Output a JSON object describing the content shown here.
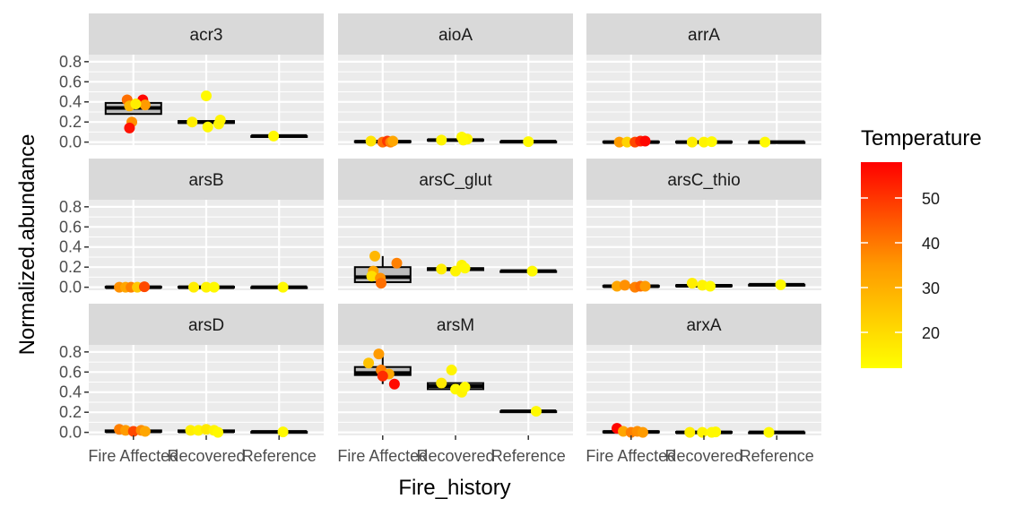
{
  "chart_data": {
    "type": "boxplot-jitter-facets",
    "xlabel": "Fire_history",
    "ylabel": "Normalized.abundance",
    "categories": [
      "Fire Affected",
      "Recovered",
      "Reference"
    ],
    "ylim": [
      -0.03,
      0.87
    ],
    "yticks": [
      0.0,
      0.2,
      0.4,
      0.6,
      0.8
    ],
    "ytick_labels": [
      "0.0",
      "0.2",
      "0.4",
      "0.6",
      "0.8"
    ],
    "grid": true,
    "legend": {
      "title": "Temperature",
      "placement": "right",
      "range": [
        12,
        58
      ],
      "ticks": [
        20,
        30,
        40,
        50
      ],
      "colors": [
        "#FFFF00",
        "#FF0000"
      ]
    },
    "panels": [
      {
        "name": "acr3",
        "boxes": [
          {
            "q1": 0.28,
            "median": 0.34,
            "q3": 0.39,
            "lo": 0.28,
            "hi": 0.39
          },
          {
            "q1": 0.19,
            "median": 0.2,
            "q3": 0.21,
            "lo": 0.19,
            "hi": 0.21
          },
          {
            "q1": 0.06,
            "median": 0.06,
            "q3": 0.06,
            "lo": 0.06,
            "hi": 0.06
          }
        ],
        "points": [
          {
            "g": 0,
            "dx": -0.08,
            "y": 0.42,
            "t": 38
          },
          {
            "g": 0,
            "dx": 0.12,
            "y": 0.42,
            "t": 57
          },
          {
            "g": 0,
            "dx": -0.05,
            "y": 0.36,
            "t": 25
          },
          {
            "g": 0,
            "dx": 0.15,
            "y": 0.37,
            "t": 30
          },
          {
            "g": 0,
            "dx": 0.03,
            "y": 0.38,
            "t": 15
          },
          {
            "g": 0,
            "dx": -0.02,
            "y": 0.2,
            "t": 32
          },
          {
            "g": 0,
            "dx": -0.05,
            "y": 0.14,
            "t": 55
          },
          {
            "g": 1,
            "dx": 0.0,
            "y": 0.46,
            "t": 13
          },
          {
            "g": 1,
            "dx": -0.18,
            "y": 0.2,
            "t": 15
          },
          {
            "g": 1,
            "dx": 0.18,
            "y": 0.22,
            "t": 14
          },
          {
            "g": 1,
            "dx": 0.16,
            "y": 0.18,
            "t": 14
          },
          {
            "g": 1,
            "dx": 0.02,
            "y": 0.15,
            "t": 13
          },
          {
            "g": 2,
            "dx": -0.07,
            "y": 0.06,
            "t": 13
          }
        ]
      },
      {
        "name": "aioA",
        "boxes": [
          {
            "q1": 0.0,
            "median": 0.005,
            "q3": 0.01,
            "lo": 0.0,
            "hi": 0.01
          },
          {
            "q1": 0.015,
            "median": 0.02,
            "q3": 0.025,
            "lo": 0.015,
            "hi": 0.025
          },
          {
            "q1": 0.005,
            "median": 0.005,
            "q3": 0.005,
            "lo": 0.005,
            "hi": 0.005
          }
        ],
        "points": [
          {
            "g": 0,
            "dx": -0.15,
            "y": 0.01,
            "t": 17
          },
          {
            "g": 0,
            "dx": 0.0,
            "y": 0.0,
            "t": 38
          },
          {
            "g": 0,
            "dx": 0.06,
            "y": 0.01,
            "t": 48
          },
          {
            "g": 0,
            "dx": 0.1,
            "y": 0.0,
            "t": 35
          },
          {
            "g": 0,
            "dx": 0.13,
            "y": 0.01,
            "t": 28
          },
          {
            "g": 1,
            "dx": -0.18,
            "y": 0.02,
            "t": 14
          },
          {
            "g": 1,
            "dx": 0.08,
            "y": 0.05,
            "t": 13
          },
          {
            "g": 1,
            "dx": 0.15,
            "y": 0.03,
            "t": 14
          },
          {
            "g": 1,
            "dx": 0.1,
            "y": 0.02,
            "t": 13
          },
          {
            "g": 2,
            "dx": 0.0,
            "y": 0.005,
            "t": 13
          }
        ]
      },
      {
        "name": "arrA",
        "boxes": [
          {
            "q1": 0.0,
            "median": 0.0,
            "q3": 0.005,
            "lo": 0.0,
            "hi": 0.005
          },
          {
            "q1": 0.0,
            "median": 0.0,
            "q3": 0.005,
            "lo": 0.0,
            "hi": 0.005
          },
          {
            "q1": 0.0,
            "median": 0.0,
            "q3": 0.0,
            "lo": 0.0,
            "hi": 0.0
          }
        ],
        "points": [
          {
            "g": 0,
            "dx": -0.15,
            "y": 0.0,
            "t": 30
          },
          {
            "g": 0,
            "dx": -0.05,
            "y": 0.0,
            "t": 20
          },
          {
            "g": 0,
            "dx": 0.05,
            "y": 0.0,
            "t": 45
          },
          {
            "g": 0,
            "dx": 0.12,
            "y": 0.01,
            "t": 52
          },
          {
            "g": 0,
            "dx": 0.18,
            "y": 0.01,
            "t": 57
          },
          {
            "g": 1,
            "dx": -0.15,
            "y": 0.0,
            "t": 15
          },
          {
            "g": 1,
            "dx": 0.0,
            "y": 0.0,
            "t": 14
          },
          {
            "g": 1,
            "dx": 0.1,
            "y": 0.005,
            "t": 13
          },
          {
            "g": 2,
            "dx": -0.15,
            "y": 0.0,
            "t": 13
          }
        ]
      },
      {
        "name": "arsB",
        "boxes": [
          {
            "q1": 0.0,
            "median": 0.0,
            "q3": 0.005,
            "lo": 0.0,
            "hi": 0.005
          },
          {
            "q1": 0.0,
            "median": 0.0,
            "q3": 0.005,
            "lo": 0.0,
            "hi": 0.005
          },
          {
            "q1": 0.0,
            "median": 0.0,
            "q3": 0.0,
            "lo": 0.0,
            "hi": 0.0
          }
        ],
        "points": [
          {
            "g": 0,
            "dx": -0.18,
            "y": 0.0,
            "t": 32
          },
          {
            "g": 0,
            "dx": -0.1,
            "y": 0.0,
            "t": 28
          },
          {
            "g": 0,
            "dx": -0.03,
            "y": 0.0,
            "t": 35
          },
          {
            "g": 0,
            "dx": 0.05,
            "y": 0.0,
            "t": 22
          },
          {
            "g": 0,
            "dx": 0.14,
            "y": 0.005,
            "t": 45
          },
          {
            "g": 1,
            "dx": -0.16,
            "y": 0.0,
            "t": 15
          },
          {
            "g": 1,
            "dx": 0.0,
            "y": 0.0,
            "t": 14
          },
          {
            "g": 1,
            "dx": 0.1,
            "y": 0.0,
            "t": 13
          },
          {
            "g": 2,
            "dx": 0.05,
            "y": 0.0,
            "t": 13
          }
        ]
      },
      {
        "name": "arsC_glut",
        "boxes": [
          {
            "q1": 0.05,
            "median": 0.1,
            "q3": 0.2,
            "lo": 0.04,
            "hi": 0.31
          },
          {
            "q1": 0.17,
            "median": 0.18,
            "q3": 0.19,
            "lo": 0.17,
            "hi": 0.19
          },
          {
            "q1": 0.16,
            "median": 0.16,
            "q3": 0.16,
            "lo": 0.16,
            "hi": 0.16
          }
        ],
        "points": [
          {
            "g": 0,
            "dx": -0.1,
            "y": 0.31,
            "t": 25
          },
          {
            "g": 0,
            "dx": 0.18,
            "y": 0.24,
            "t": 35
          },
          {
            "g": 0,
            "dx": -0.12,
            "y": 0.16,
            "t": 28
          },
          {
            "g": 0,
            "dx": -0.14,
            "y": 0.11,
            "t": 18
          },
          {
            "g": 0,
            "dx": -0.03,
            "y": 0.09,
            "t": 32
          },
          {
            "g": 0,
            "dx": -0.02,
            "y": 0.04,
            "t": 38
          },
          {
            "g": 1,
            "dx": -0.18,
            "y": 0.18,
            "t": 15
          },
          {
            "g": 1,
            "dx": 0.0,
            "y": 0.16,
            "t": 14
          },
          {
            "g": 1,
            "dx": 0.08,
            "y": 0.22,
            "t": 14
          },
          {
            "g": 1,
            "dx": 0.12,
            "y": 0.19,
            "t": 13
          },
          {
            "g": 2,
            "dx": 0.05,
            "y": 0.16,
            "t": 13
          }
        ]
      },
      {
        "name": "arsC_thio",
        "boxes": [
          {
            "q1": 0.005,
            "median": 0.01,
            "q3": 0.015,
            "lo": 0.005,
            "hi": 0.015
          },
          {
            "q1": 0.01,
            "median": 0.015,
            "q3": 0.02,
            "lo": 0.01,
            "hi": 0.02
          },
          {
            "q1": 0.025,
            "median": 0.025,
            "q3": 0.025,
            "lo": 0.025,
            "hi": 0.025
          }
        ],
        "points": [
          {
            "g": 0,
            "dx": -0.18,
            "y": 0.01,
            "t": 28
          },
          {
            "g": 0,
            "dx": -0.08,
            "y": 0.02,
            "t": 32
          },
          {
            "g": 0,
            "dx": 0.05,
            "y": 0.0,
            "t": 35
          },
          {
            "g": 0,
            "dx": 0.12,
            "y": 0.01,
            "t": 38
          },
          {
            "g": 0,
            "dx": 0.18,
            "y": 0.01,
            "t": 30
          },
          {
            "g": 1,
            "dx": -0.15,
            "y": 0.04,
            "t": 15
          },
          {
            "g": 1,
            "dx": -0.02,
            "y": 0.02,
            "t": 14
          },
          {
            "g": 1,
            "dx": 0.08,
            "y": 0.01,
            "t": 13
          },
          {
            "g": 2,
            "dx": 0.05,
            "y": 0.025,
            "t": 13
          }
        ]
      },
      {
        "name": "arsD",
        "boxes": [
          {
            "q1": 0.005,
            "median": 0.01,
            "q3": 0.02,
            "lo": 0.005,
            "hi": 0.02
          },
          {
            "q1": 0.005,
            "median": 0.01,
            "q3": 0.02,
            "lo": 0.005,
            "hi": 0.02
          },
          {
            "q1": 0.005,
            "median": 0.005,
            "q3": 0.005,
            "lo": 0.005,
            "hi": 0.005
          }
        ],
        "points": [
          {
            "g": 0,
            "dx": -0.18,
            "y": 0.03,
            "t": 35
          },
          {
            "g": 0,
            "dx": -0.1,
            "y": 0.02,
            "t": 30
          },
          {
            "g": 0,
            "dx": 0.0,
            "y": 0.01,
            "t": 45
          },
          {
            "g": 0,
            "dx": 0.1,
            "y": 0.02,
            "t": 33
          },
          {
            "g": 0,
            "dx": 0.15,
            "y": 0.01,
            "t": 28
          },
          {
            "g": 1,
            "dx": -0.2,
            "y": 0.02,
            "t": 15
          },
          {
            "g": 1,
            "dx": -0.1,
            "y": 0.02,
            "t": 14
          },
          {
            "g": 1,
            "dx": 0.0,
            "y": 0.03,
            "t": 16
          },
          {
            "g": 1,
            "dx": 0.1,
            "y": 0.02,
            "t": 14
          },
          {
            "g": 1,
            "dx": 0.15,
            "y": 0.0,
            "t": 13
          },
          {
            "g": 2,
            "dx": 0.05,
            "y": 0.005,
            "t": 13
          }
        ]
      },
      {
        "name": "arsM",
        "boxes": [
          {
            "q1": 0.57,
            "median": 0.59,
            "q3": 0.65,
            "lo": 0.48,
            "hi": 0.79
          },
          {
            "q1": 0.43,
            "median": 0.46,
            "q3": 0.49,
            "lo": 0.43,
            "hi": 0.49
          },
          {
            "q1": 0.21,
            "median": 0.21,
            "q3": 0.21,
            "lo": 0.21,
            "hi": 0.21
          }
        ],
        "points": [
          {
            "g": 0,
            "dx": -0.05,
            "y": 0.78,
            "t": 30
          },
          {
            "g": 0,
            "dx": -0.18,
            "y": 0.69,
            "t": 23
          },
          {
            "g": 0,
            "dx": -0.02,
            "y": 0.62,
            "t": 35
          },
          {
            "g": 0,
            "dx": 0.08,
            "y": 0.58,
            "t": 28
          },
          {
            "g": 0,
            "dx": 0.0,
            "y": 0.56,
            "t": 50
          },
          {
            "g": 0,
            "dx": 0.15,
            "y": 0.48,
            "t": 56
          },
          {
            "g": 1,
            "dx": -0.18,
            "y": 0.49,
            "t": 16
          },
          {
            "g": 1,
            "dx": -0.05,
            "y": 0.62,
            "t": 14
          },
          {
            "g": 1,
            "dx": 0.0,
            "y": 0.43,
            "t": 13
          },
          {
            "g": 1,
            "dx": 0.08,
            "y": 0.4,
            "t": 14
          },
          {
            "g": 1,
            "dx": 0.12,
            "y": 0.45,
            "t": 13
          },
          {
            "g": 2,
            "dx": 0.1,
            "y": 0.21,
            "t": 13
          }
        ]
      },
      {
        "name": "arxA",
        "boxes": [
          {
            "q1": 0.0,
            "median": 0.005,
            "q3": 0.01,
            "lo": 0.0,
            "hi": 0.01
          },
          {
            "q1": 0.0,
            "median": 0.0,
            "q3": 0.005,
            "lo": 0.0,
            "hi": 0.005
          },
          {
            "q1": 0.0,
            "median": 0.0,
            "q3": 0.0,
            "lo": 0.0,
            "hi": 0.0
          }
        ],
        "points": [
          {
            "g": 0,
            "dx": -0.18,
            "y": 0.04,
            "t": 57
          },
          {
            "g": 0,
            "dx": -0.1,
            "y": 0.01,
            "t": 28
          },
          {
            "g": 0,
            "dx": 0.0,
            "y": 0.0,
            "t": 35
          },
          {
            "g": 0,
            "dx": 0.08,
            "y": 0.01,
            "t": 32
          },
          {
            "g": 0,
            "dx": 0.15,
            "y": 0.0,
            "t": 30
          },
          {
            "g": 1,
            "dx": -0.18,
            "y": 0.0,
            "t": 15
          },
          {
            "g": 1,
            "dx": -0.02,
            "y": 0.0,
            "t": 14
          },
          {
            "g": 1,
            "dx": 0.1,
            "y": 0.0,
            "t": 13
          },
          {
            "g": 1,
            "dx": 0.15,
            "y": 0.005,
            "t": 13
          },
          {
            "g": 2,
            "dx": -0.1,
            "y": 0.0,
            "t": 13
          }
        ]
      }
    ]
  }
}
